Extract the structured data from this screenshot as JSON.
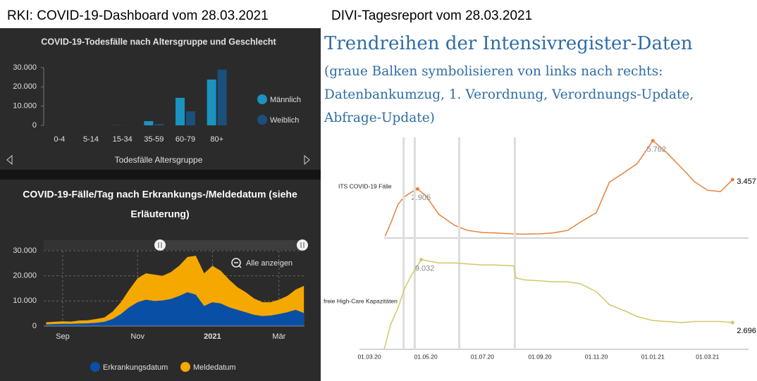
{
  "headers": {
    "left": "RKI: COVID-19-Dashboard vom 28.03.2021",
    "right": "DIVI-Tagesreport vom 28.03.2021"
  },
  "chart_data": [
    {
      "type": "bar",
      "title": "COVID-19-Todesfälle nach Altersgruppe und Geschlecht",
      "categories": [
        "0-4",
        "5-14",
        "15-34",
        "35-59",
        "60-79",
        "80+"
      ],
      "series": [
        {
          "name": "Männlich",
          "color": "#1a93c0",
          "values": [
            3,
            2,
            60,
            2200,
            14300,
            23800
          ]
        },
        {
          "name": "Weiblich",
          "color": "#1b4f7c",
          "values": [
            2,
            1,
            30,
            700,
            7300,
            29000
          ]
        }
      ],
      "x_label": "Todesfälle Altersgruppe",
      "ylim": [
        0,
        30000
      ],
      "yticks": [
        0,
        {
          "value": 10000,
          "label": "10.000"
        },
        {
          "value": 20000,
          "label": "20.000"
        },
        {
          "value": 30000,
          "label": "30.000"
        }
      ],
      "legend": "right"
    },
    {
      "type": "area",
      "title": [
        "COVID-19-Fälle/Tag nach Erkrankungs-/Meldedatum (siehe",
        "Erläuterung)"
      ],
      "categories": [
        null,
        null,
        "Sep",
        null,
        null,
        null,
        null,
        null,
        null,
        null,
        null,
        "Nov",
        null,
        null,
        null,
        null,
        null,
        null,
        null,
        null,
        "2021",
        null,
        null,
        null,
        null,
        null,
        null,
        null,
        "Mär",
        null,
        null,
        null
      ],
      "series": [
        {
          "name": "Erkrankungsdatum",
          "color": "#0a4fa6",
          "values": [
            700,
            800,
            900,
            900,
            1000,
            1100,
            1300,
            1700,
            2800,
            4800,
            7500,
            9500,
            10500,
            10000,
            10200,
            10800,
            12000,
            13500,
            12500,
            8000,
            9500,
            9000,
            7500,
            6500,
            5500,
            4500,
            4000,
            4200,
            4800,
            5500,
            6500,
            5200
          ]
        },
        {
          "name": "Meldedatum",
          "color": "#f5a800",
          "values": [
            1500,
            1700,
            1900,
            1800,
            2200,
            2300,
            2800,
            3400,
            5800,
            9500,
            14500,
            19000,
            21000,
            20500,
            20000,
            21500,
            24000,
            27500,
            28000,
            21000,
            24000,
            22000,
            18500,
            15500,
            13500,
            11000,
            9500,
            9500,
            10500,
            12000,
            14500,
            16000
          ]
        }
      ],
      "ylim": [
        0,
        30000
      ],
      "yticks": [
        0,
        {
          "value": 10000,
          "label": "10.000"
        },
        {
          "value": 20000,
          "label": "20.000"
        },
        {
          "value": 30000,
          "label": "30.000"
        }
      ],
      "grid": true,
      "legend": "bottom",
      "reset_button": "Alle anzeigen"
    },
    {
      "type": "line",
      "title": "Trendreihen der Intensivregister-Daten",
      "subtitle": [
        "(graue Balken symbolisieren von links nach rechts:",
        "Datenbankumzug, 1. Verordnung, Verordnungs-Update,",
        "Abfrage-Update)"
      ],
      "x": [
        "18.03.20",
        "25.03.20",
        "01.04.20",
        "08.04.20",
        "15.04.20",
        "22.04.20",
        "01.05.20",
        "15.05.20",
        "01.06.20",
        "15.06.20",
        "01.07.20",
        "15.07.20",
        "01.08.20",
        "15.08.20",
        "01.09.20",
        "15.09.20",
        "01.10.20",
        "15.10.20",
        "01.11.20",
        "15.11.20",
        "01.12.20",
        "15.12.20",
        "01.01.21",
        "15.01.21",
        "01.02.21",
        "15.02.21",
        "01.03.21",
        "15.03.21",
        "28.03.21"
      ],
      "series": [
        {
          "name": "ITS COVID-19 Fälle",
          "color": "#e8803a",
          "values": [
            100,
            1000,
            2000,
            2450,
            2700,
            2905,
            2500,
            1400,
            750,
            450,
            330,
            300,
            250,
            230,
            250,
            300,
            450,
            950,
            1500,
            3300,
            3875,
            4400,
            5762,
            5100,
            4150,
            3330,
            2830,
            2750,
            3457
          ],
          "value_labels": [
            null,
            null,
            null,
            null,
            null,
            "2.905",
            null,
            null,
            null,
            null,
            null,
            null,
            null,
            null,
            null,
            null,
            null,
            null,
            null,
            null,
            null,
            null,
            "5.762",
            null,
            null,
            null,
            null,
            null,
            "3.457"
          ]
        }
      ],
      "xlim": [
        "01.03.20",
        "15.04.21"
      ],
      "ylim": [
        0,
        6200
      ]
    },
    {
      "type": "line",
      "x": [
        "17.03.20",
        "24.03.20",
        "01.04.20",
        "08.04.20",
        "15.04.20",
        "26.04.20",
        "15.05.20",
        "01.06.20",
        "15.06.20",
        "01.07.20",
        "15.07.20",
        "04.08.20",
        "06.08.20",
        "15.08.20",
        "01.09.20",
        "15.09.20",
        "01.10.20",
        "15.10.20",
        "01.11.20",
        "15.11.20",
        "01.12.20",
        "15.12.20",
        "01.01.21",
        "15.01.21",
        "01.02.21",
        "15.02.21",
        "01.03.21",
        "15.03.21",
        "28.03.21"
      ],
      "series": [
        {
          "name": "freie High-Care Kapazitäten",
          "color": "#cfc96a",
          "values": [
            0,
            2500,
            4200,
            6100,
            7400,
            9032,
            8700,
            8700,
            8600,
            8500,
            8500,
            8400,
            7200,
            7000,
            6900,
            6800,
            6800,
            6600,
            5800,
            4500,
            3900,
            3300,
            2900,
            2800,
            2700,
            2800,
            2800,
            2800,
            2696
          ],
          "value_labels": [
            null,
            null,
            null,
            null,
            null,
            "9.032",
            null,
            null,
            null,
            null,
            null,
            null,
            null,
            null,
            null,
            null,
            null,
            null,
            null,
            null,
            null,
            null,
            null,
            null,
            null,
            null,
            null,
            null,
            "2.696"
          ]
        }
      ],
      "events": [
        "07.04.20",
        "19.04.20",
        "06.06.20",
        "05.08.20"
      ],
      "xlim": [
        "01.03.20",
        "15.04.21"
      ],
      "ylim": [
        0,
        10500
      ],
      "xticks": [
        "01.03.20",
        "01.05.20",
        "01.07.20",
        "01.09.20",
        "01.11.20",
        "01.01.21",
        "01.03.21"
      ]
    }
  ]
}
